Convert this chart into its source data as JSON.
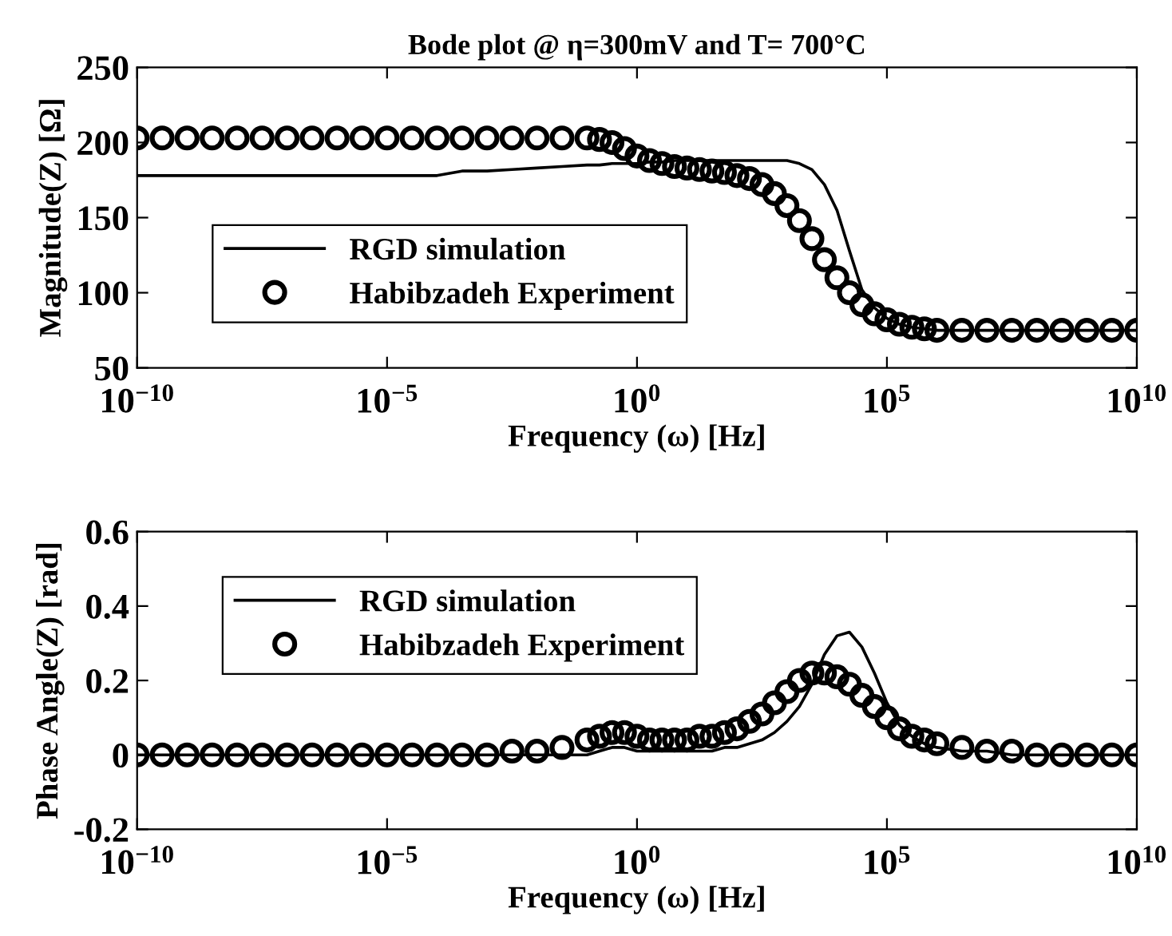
{
  "chart_data": [
    {
      "type": "line",
      "title": "Bode plot @ η=300mV and T= 700°C",
      "xlabel": "Frequency (ω) [Hz]",
      "ylabel": "Magnitude(Z) [Ω]",
      "log": "x",
      "x": [
        1e-10,
        3.162e-10,
        1e-09,
        3.162e-09,
        1e-08,
        3.162e-08,
        1e-07,
        3.162e-07,
        1e-06,
        3.162e-06,
        1e-05,
        3.162e-05,
        0.0001,
        0.0003162,
        0.001,
        0.003162,
        0.01,
        0.03162,
        0.1,
        0.1778,
        0.3162,
        0.5623,
        1,
        1.778,
        3.162,
        5.623,
        10,
        17.78,
        31.62,
        56.23,
        100,
        177.8,
        316.2,
        562.3,
        1000,
        1778,
        3162,
        5623,
        10000,
        17780,
        31620,
        56230,
        100000,
        177800,
        316200,
        562300,
        1000000,
        3162000,
        10000000.0,
        31620000.0,
        100000000.0,
        316200000.0,
        1000000000.0,
        3162000000.0,
        10000000000.0
      ],
      "series": [
        {
          "name": "RGD simulation",
          "color": "#000000",
          "marker": "none",
          "values": [
            178,
            178,
            178,
            178,
            178,
            178,
            178,
            178,
            178,
            178,
            178,
            178,
            178,
            181,
            181,
            182,
            183,
            184,
            185,
            185,
            186,
            186,
            186,
            187,
            187,
            188,
            188,
            188,
            188,
            188,
            188,
            188,
            188,
            188,
            188,
            186,
            182,
            172,
            155,
            128,
            102,
            90,
            83,
            79,
            77,
            76,
            75,
            75,
            75,
            75,
            75,
            75,
            75,
            75,
            75
          ]
        },
        {
          "name": "Habibzadeh Experiment",
          "type": "scatter",
          "color": "#000000",
          "marker": "circle",
          "values": [
            203,
            203,
            203,
            203,
            203,
            203,
            203,
            203,
            203,
            203,
            203,
            203,
            203,
            203,
            203,
            203,
            203,
            203,
            203,
            202,
            200,
            196,
            191,
            188,
            186,
            184,
            183,
            182,
            181,
            180,
            178,
            176,
            172,
            166,
            158,
            148,
            136,
            122,
            110,
            100,
            92,
            86,
            82,
            79,
            77,
            76,
            75,
            75,
            75,
            75,
            75,
            75,
            75,
            75,
            75
          ]
        }
      ],
      "xlim": [
        1e-10,
        10000000000.0
      ],
      "ylim": [
        50,
        250
      ],
      "xticks": [
        {
          "value": 1e-10,
          "label": "10$^{−10}$"
        },
        {
          "value": 1e-05,
          "label": "10$^{−5}$"
        },
        {
          "value": 1,
          "label": "10$^{0}$"
        },
        {
          "value": 100000.0,
          "label": "10$^{5}$"
        },
        {
          "value": 10000000000.0,
          "label": "10$^{10}$"
        }
      ],
      "yticks": [
        50,
        100,
        150,
        200,
        250
      ],
      "grid": false,
      "legend": "bottom left"
    },
    {
      "type": "line",
      "xlabel": "Frequency (ω) [Hz]",
      "ylabel": "Phase Angle(Z) [rad]",
      "log": "x",
      "x": [
        1e-10,
        3.162e-10,
        1e-09,
        3.162e-09,
        1e-08,
        3.162e-08,
        1e-07,
        3.162e-07,
        1e-06,
        3.162e-06,
        1e-05,
        3.162e-05,
        0.0001,
        0.0003162,
        0.001,
        0.003162,
        0.01,
        0.03162,
        0.1,
        0.1778,
        0.3162,
        0.5623,
        1,
        1.778,
        3.162,
        5.623,
        10,
        17.78,
        31.62,
        56.23,
        100,
        177.8,
        316.2,
        562.3,
        1000,
        1778,
        3162,
        5623,
        10000,
        17780,
        31620,
        56230,
        100000,
        177800,
        316200,
        562300,
        1000000,
        3162000,
        10000000.0,
        31620000.0,
        100000000.0,
        316200000.0,
        1000000000.0,
        3162000000.0,
        10000000000.0
      ],
      "series": [
        {
          "name": "RGD simulation",
          "color": "#000000",
          "marker": "none",
          "values": [
            0,
            0,
            0,
            0,
            0,
            0,
            0,
            0,
            0,
            0,
            0,
            0,
            0,
            0,
            0,
            0,
            0,
            0,
            0,
            0.01,
            0.02,
            0.02,
            0.01,
            0.01,
            0.01,
            0.01,
            0.01,
            0.01,
            0.01,
            0.02,
            0.02,
            0.03,
            0.04,
            0.06,
            0.09,
            0.13,
            0.19,
            0.27,
            0.32,
            0.33,
            0.29,
            0.22,
            0.14,
            0.08,
            0.05,
            0.03,
            0.02,
            0.01,
            0.01,
            0,
            0,
            0,
            0,
            0,
            0
          ]
        },
        {
          "name": "Habibzadeh Experiment",
          "type": "scatter",
          "color": "#000000",
          "marker": "circle",
          "values": [
            0,
            0,
            0,
            0,
            0,
            0,
            0,
            0,
            0,
            0,
            0,
            0,
            0,
            0,
            0,
            0.01,
            0.01,
            0.02,
            0.04,
            0.05,
            0.06,
            0.06,
            0.05,
            0.04,
            0.04,
            0.04,
            0.04,
            0.05,
            0.05,
            0.06,
            0.07,
            0.09,
            0.11,
            0.14,
            0.17,
            0.2,
            0.22,
            0.22,
            0.21,
            0.19,
            0.16,
            0.13,
            0.1,
            0.07,
            0.05,
            0.04,
            0.03,
            0.02,
            0.01,
            0.01,
            0,
            0,
            0,
            0,
            0
          ]
        }
      ],
      "xlim": [
        1e-10,
        10000000000.0
      ],
      "ylim": [
        -0.2,
        0.6
      ],
      "xticks": [
        {
          "value": 1e-10,
          "label": "10$^{−10}$"
        },
        {
          "value": 1e-05,
          "label": "10$^{−5}$"
        },
        {
          "value": 1,
          "label": "10$^{0}$"
        },
        {
          "value": 100000.0,
          "label": "10$^{5}$"
        },
        {
          "value": 10000000000.0,
          "label": "10$^{10}$"
        }
      ],
      "yticks": [
        -0.2,
        0,
        0.2,
        0.4,
        0.6
      ],
      "grid": false,
      "legend": "top left"
    }
  ]
}
